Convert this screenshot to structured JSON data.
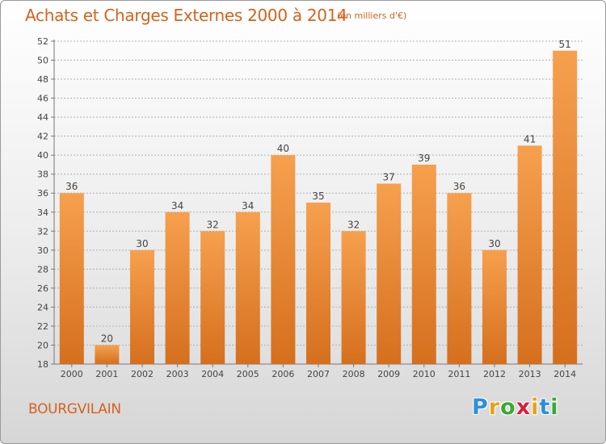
{
  "title": "Achats et Charges Externes 2000 à 2014",
  "subtitle": "(en milliers d'€)",
  "commune": "BOURGVILAIN",
  "brand": {
    "letters": [
      "P",
      "r",
      "o",
      "x",
      "i",
      "t",
      "i"
    ],
    "colors": [
      "#2f8fd8",
      "#e8a21a",
      "#39a935",
      "#d81f3a",
      "#e8a21a",
      "#2f8fd8",
      "#39a935"
    ]
  },
  "colors": {
    "accent": "#d2631d",
    "bar_top": "#f6a04e",
    "bar_bottom": "#d56f1e",
    "grid": "#b0b0b0"
  },
  "chart_data": {
    "type": "bar",
    "categories": [
      "2000",
      "2001",
      "2002",
      "2003",
      "2004",
      "2005",
      "2006",
      "2007",
      "2008",
      "2009",
      "2010",
      "2011",
      "2012",
      "2013",
      "2014"
    ],
    "values": [
      36,
      20,
      30,
      34,
      32,
      34,
      40,
      35,
      32,
      37,
      39,
      36,
      30,
      41,
      51
    ],
    "ylim": [
      18,
      52
    ],
    "yticks": [
      18,
      20,
      22,
      24,
      26,
      28,
      30,
      32,
      34,
      36,
      38,
      40,
      42,
      44,
      46,
      48,
      50,
      52
    ],
    "grid": true,
    "legend": "none"
  }
}
